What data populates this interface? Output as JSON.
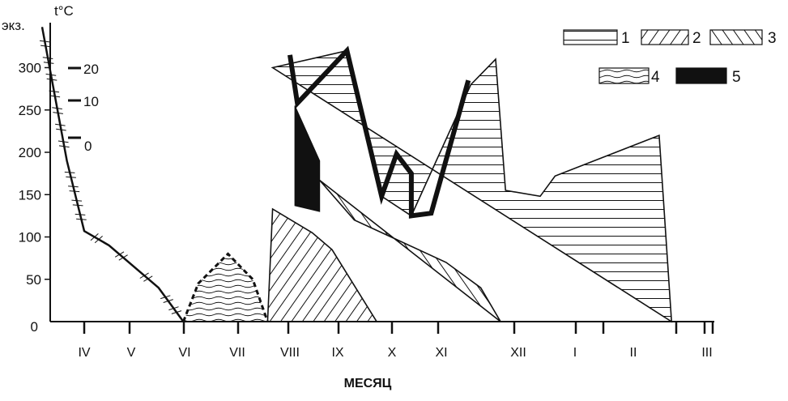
{
  "chart_data": {
    "type": "area",
    "title": "",
    "xlabel": "МЕСЯЦ",
    "ylabel": "экз.",
    "temp_label": "t°C",
    "yticks": [
      "0",
      "50",
      "100",
      "150",
      "200",
      "250",
      "300"
    ],
    "temp_ticks": [
      "20",
      "10",
      "0"
    ],
    "months": [
      "IV",
      "V",
      "VI",
      "VII",
      "VIII",
      "IX",
      "X",
      "XI",
      "XII",
      "I",
      "II",
      "III"
    ],
    "ylim": [
      0,
      350
    ],
    "grid": false,
    "legend_position": "top-right",
    "legend": [
      {
        "key": "1",
        "label": "1",
        "pattern": "horizontal hatch"
      },
      {
        "key": "2",
        "label": "2",
        "pattern": "backward diagonal hatch"
      },
      {
        "key": "3",
        "label": "3",
        "pattern": "forward diagonal hatch"
      },
      {
        "key": "4",
        "label": "4",
        "pattern": "wavy lines"
      },
      {
        "key": "5",
        "label": "5",
        "pattern": "solid black"
      }
    ],
    "series": [
      {
        "key": "temperature",
        "label": "t°C",
        "style": "line with ice ticks",
        "points": [
          [
            -0.85,
            348
          ],
          [
            -0.35,
            190
          ],
          [
            0,
            107
          ],
          [
            0.5,
            90
          ],
          [
            1,
            65
          ],
          [
            1.5,
            40
          ],
          [
            2,
            0
          ]
        ]
      },
      {
        "key": "4",
        "style": "dashed outline",
        "points": [
          [
            2,
            0
          ],
          [
            2.3,
            45
          ],
          [
            2.9,
            80
          ],
          [
            3.4,
            50
          ],
          [
            3.7,
            0
          ]
        ]
      },
      {
        "key": "2",
        "points": [
          [
            3.7,
            0
          ],
          [
            3.8,
            133
          ],
          [
            4.6,
            105
          ],
          [
            5,
            85
          ],
          [
            5.9,
            0
          ]
        ]
      },
      {
        "key": "3",
        "points": [
          [
            4.75,
            167
          ],
          [
            5.45,
            120
          ],
          [
            6.3,
            97
          ],
          [
            7.3,
            70
          ],
          [
            8,
            40
          ],
          [
            8.4,
            0
          ]
        ]
      },
      {
        "key": "1",
        "points": [
          [
            3.8,
            300
          ],
          [
            5.3,
            320
          ],
          [
            6,
            148
          ],
          [
            6.6,
            125
          ],
          [
            7.8,
            280
          ],
          [
            8.3,
            310
          ],
          [
            8.5,
            155
          ],
          [
            9.2,
            148
          ],
          [
            9.5,
            172
          ],
          [
            11.6,
            220
          ],
          [
            11.85,
            0
          ]
        ]
      },
      {
        "key": "5",
        "points": [
          [
            4.25,
            255
          ],
          [
            4.75,
            190
          ],
          [
            4.75,
            130
          ],
          [
            4.25,
            137
          ]
        ]
      },
      {
        "key": "envelope",
        "style": "bold line",
        "points": [
          [
            4.15,
            315
          ],
          [
            4.3,
            258
          ],
          [
            5.3,
            320
          ],
          [
            6,
            148
          ],
          [
            6.3,
            198
          ],
          [
            6.6,
            175
          ],
          [
            6.6,
            125
          ],
          [
            7,
            128
          ],
          [
            7.75,
            285
          ]
        ]
      }
    ]
  }
}
